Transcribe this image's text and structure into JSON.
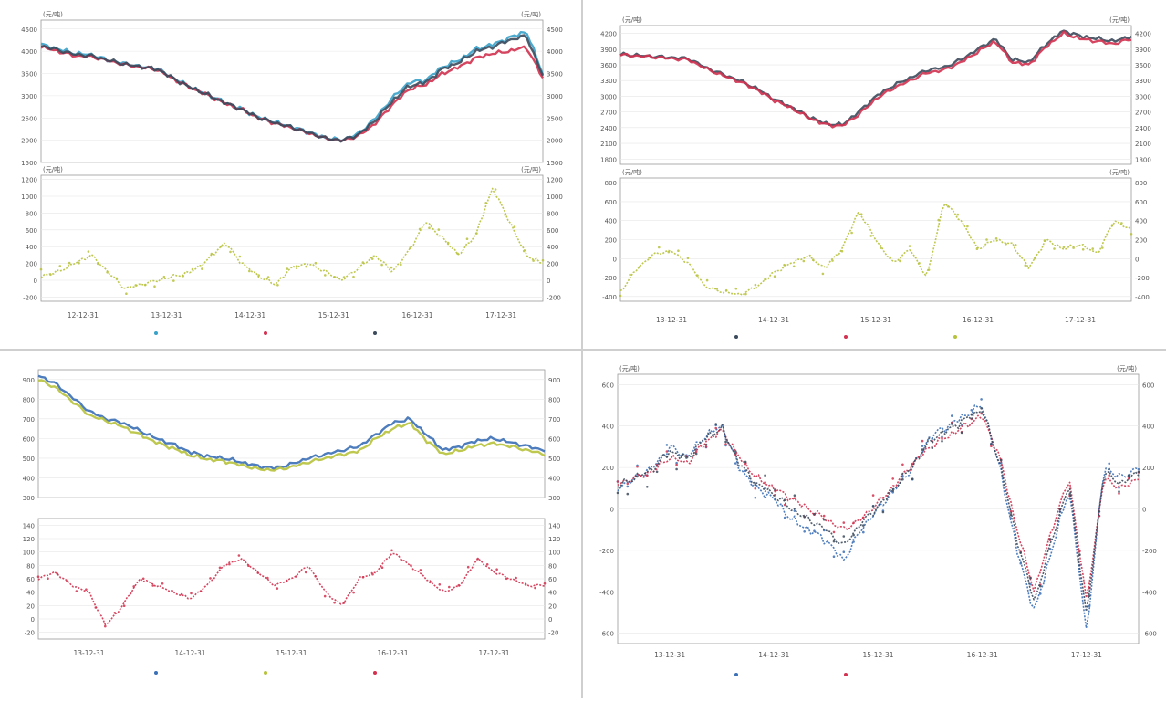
{
  "chart_data": [
    {
      "type": "line",
      "colors": {
        "a": "#38a1c9",
        "b": "#d2314f",
        "c": "#3c4a5c",
        "spread": "#b7c23c",
        "grid": "#e6e6e6",
        "frame": "#9a9a9a"
      },
      "upper": {
        "unit_left": "(元/吨)",
        "unit_right": "(元/吨)",
        "y_ticks": [
          "4500",
          "4000",
          "3500",
          "3000",
          "2500",
          "2000",
          "1500"
        ],
        "ylim": [
          1500,
          4700
        ],
        "series": [
          {
            "key": "a",
            "values": [
              4150,
              4050,
              3950,
              3920,
              3800,
              3720,
              3650,
              3600,
              3380,
              3180,
              3020,
              2850,
              2700,
              2520,
              2400,
              2300,
              2180,
              2050,
              2000,
              2150,
              2500,
              2950,
              3300,
              3350,
              3650,
              3800,
              4050,
              4150,
              4300,
              4450,
              3500
            ]
          },
          {
            "key": "b",
            "values": [
              4100,
              4000,
              3900,
              3880,
              3790,
              3700,
              3640,
              3580,
              3360,
              3170,
              3010,
              2830,
              2690,
              2500,
              2380,
              2280,
              2160,
              2040,
              1990,
              2100,
              2380,
              2800,
              3150,
              3250,
              3500,
              3650,
              3850,
              3950,
              4000,
              4100,
              3400
            ]
          },
          {
            "key": "c",
            "values": [
              4120,
              4030,
              3930,
              3900,
              3800,
              3710,
              3650,
              3590,
              3370,
              3175,
              3015,
              2840,
              2695,
              2510,
              2390,
              2290,
              2170,
              2045,
              1995,
              2130,
              2450,
              2880,
              3220,
              3300,
              3600,
              3750,
              4000,
              4100,
              4250,
              4350,
              3450
            ]
          }
        ]
      },
      "lower": {
        "unit_left": "(元/吨)",
        "unit_right": "(元/吨)",
        "y_ticks": [
          "1200",
          "1000",
          "800",
          "600",
          "400",
          "200",
          "0",
          "-200"
        ],
        "ylim": [
          -250,
          1250
        ],
        "spread": [
          50,
          100,
          200,
          300,
          100,
          -100,
          -50,
          0,
          50,
          100,
          250,
          450,
          200,
          50,
          -50,
          150,
          200,
          100,
          0,
          150,
          300,
          100,
          350,
          700,
          500,
          300,
          550,
          1100,
          700,
          300,
          200
        ]
      },
      "x_ticks": [
        "12-12-31",
        "13-12-31",
        "14-12-31",
        "15-12-31",
        "16-12-31",
        "17-12-31"
      ],
      "legend": [
        "",
        "",
        ""
      ]
    },
    {
      "type": "line",
      "colors": {
        "a": "#3c4a5c",
        "b": "#d2314f",
        "spread": "#b7c23c",
        "grid": "#e6e6e6",
        "frame": "#9a9a9a"
      },
      "upper": {
        "unit_left": "(元/吨)",
        "unit_right": "(元/吨)",
        "y_ticks": [
          "4200",
          "3900",
          "3600",
          "3300",
          "3000",
          "2700",
          "2400",
          "2100",
          "1800"
        ],
        "ylim": [
          1700,
          4350
        ],
        "series": [
          {
            "key": "a",
            "values": [
              3800,
              3780,
              3760,
              3740,
              3720,
              3550,
              3420,
              3300,
              3150,
              2950,
              2800,
              2620,
              2480,
              2450,
              2700,
              3000,
              3200,
              3350,
              3500,
              3550,
              3700,
              3900,
              4100,
              3700,
              3650,
              4000,
              4250,
              4150,
              4100,
              4050,
              4150
            ]
          },
          {
            "key": "b",
            "values": [
              3790,
              3770,
              3750,
              3720,
              3700,
              3530,
              3400,
              3280,
              3130,
              2930,
              2780,
              2600,
              2460,
              2430,
              2650,
              2950,
              3150,
              3300,
              3450,
              3500,
              3650,
              3850,
              4050,
              3650,
              3600,
              3950,
              4200,
              4100,
              4050,
              4000,
              4100
            ]
          }
        ]
      },
      "lower": {
        "unit_left": "(元/吨)",
        "unit_right": "(元/吨)",
        "y_ticks": [
          "800",
          "600",
          "400",
          "200",
          "0",
          "-200",
          "-400"
        ],
        "ylim": [
          -450,
          850
        ],
        "spread": [
          -350,
          -100,
          50,
          80,
          -50,
          -300,
          -350,
          -380,
          -300,
          -150,
          -50,
          30,
          -100,
          100,
          500,
          200,
          -50,
          100,
          -200,
          600,
          400,
          100,
          200,
          150,
          -100,
          200,
          100,
          150,
          50,
          400,
          300
        ]
      },
      "x_ticks": [
        "13-12-31",
        "14-12-31",
        "15-12-31",
        "16-12-31",
        "17-12-31"
      ],
      "legend": [
        "",
        "",
        ""
      ]
    },
    {
      "type": "line",
      "colors": {
        "a": "#3b6fb6",
        "b": "#b7c23c",
        "spread": "#d2314f",
        "grid": "#e6e6e6",
        "frame": "#9a9a9a"
      },
      "upper": {
        "unit_left": "",
        "unit_right": "",
        "y_ticks": [
          "900",
          "800",
          "700",
          "600",
          "500",
          "400",
          "300"
        ],
        "ylim": [
          300,
          950
        ],
        "series": [
          {
            "key": "a",
            "values": [
              920,
              880,
              810,
              740,
              700,
              680,
              640,
              600,
              570,
              530,
              510,
              500,
              480,
              460,
              450,
              470,
              500,
              520,
              540,
              560,
              620,
              680,
              700,
              620,
              540,
              560,
              590,
              600,
              580,
              560,
              540
            ]
          },
          {
            "key": "b",
            "values": [
              900,
              860,
              790,
              720,
              690,
              660,
              620,
              580,
              550,
              515,
              495,
              485,
              465,
              445,
              440,
              455,
              480,
              500,
              520,
              535,
              600,
              650,
              680,
              590,
              520,
              540,
              565,
              575,
              560,
              540,
              520
            ]
          }
        ]
      },
      "lower": {
        "unit_left": "",
        "unit_right": "",
        "y_ticks": [
          "140",
          "120",
          "100",
          "80",
          "60",
          "40",
          "20",
          "0",
          "-20"
        ],
        "ylim": [
          -30,
          150
        ],
        "spread": [
          60,
          70,
          50,
          40,
          -10,
          20,
          60,
          50,
          40,
          30,
          50,
          80,
          90,
          70,
          50,
          60,
          80,
          40,
          20,
          60,
          70,
          100,
          80,
          60,
          40,
          50,
          90,
          70,
          60,
          50,
          50
        ]
      },
      "x_ticks": [
        "13-12-31",
        "14-12-31",
        "15-12-31",
        "16-12-31",
        "17-12-31"
      ],
      "legend": [
        "",
        "",
        ""
      ]
    },
    {
      "type": "line",
      "colors": {
        "a": "#3b6fb6",
        "b": "#d2314f",
        "c": "#3c4a5c",
        "grid": "#e6e6e6",
        "frame": "#9a9a9a"
      },
      "upper": {
        "unit_left": "(元/吨)",
        "unit_right": "(元/吨)",
        "y_ticks": [
          "600",
          "400",
          "200",
          "0",
          "-200",
          "-400",
          "-600"
        ],
        "ylim": [
          -650,
          650
        ],
        "series": [
          {
            "key": "a",
            "values": [
              100,
              150,
              200,
              300,
              250,
              350,
              400,
              200,
              100,
              50,
              -50,
              -100,
              -150,
              -250,
              -100,
              0,
              100,
              200,
              350,
              400,
              450,
              500,
              200,
              -200,
              -500,
              -200,
              100,
              -600,
              200,
              150,
              200
            ]
          },
          {
            "key": "b",
            "values": [
              120,
              150,
              180,
              250,
              220,
              320,
              380,
              250,
              150,
              100,
              50,
              0,
              -50,
              -100,
              -50,
              30,
              120,
              220,
              300,
              350,
              400,
              450,
              250,
              -100,
              -400,
              -100,
              150,
              -450,
              150,
              100,
              150
            ]
          },
          {
            "key": "c",
            "values": [
              110,
              150,
              190,
              280,
              240,
              340,
              390,
              220,
              120,
              70,
              0,
              -50,
              -100,
              -180,
              -70,
              10,
              110,
              210,
              330,
              380,
              430,
              480,
              220,
              -150,
              -450,
              -150,
              120,
              -520,
              180,
              120,
              180
            ]
          }
        ]
      },
      "x_ticks": [
        "13-12-31",
        "14-12-31",
        "15-12-31",
        "16-12-31",
        "17-12-31"
      ],
      "legend": [
        "",
        ""
      ]
    }
  ]
}
